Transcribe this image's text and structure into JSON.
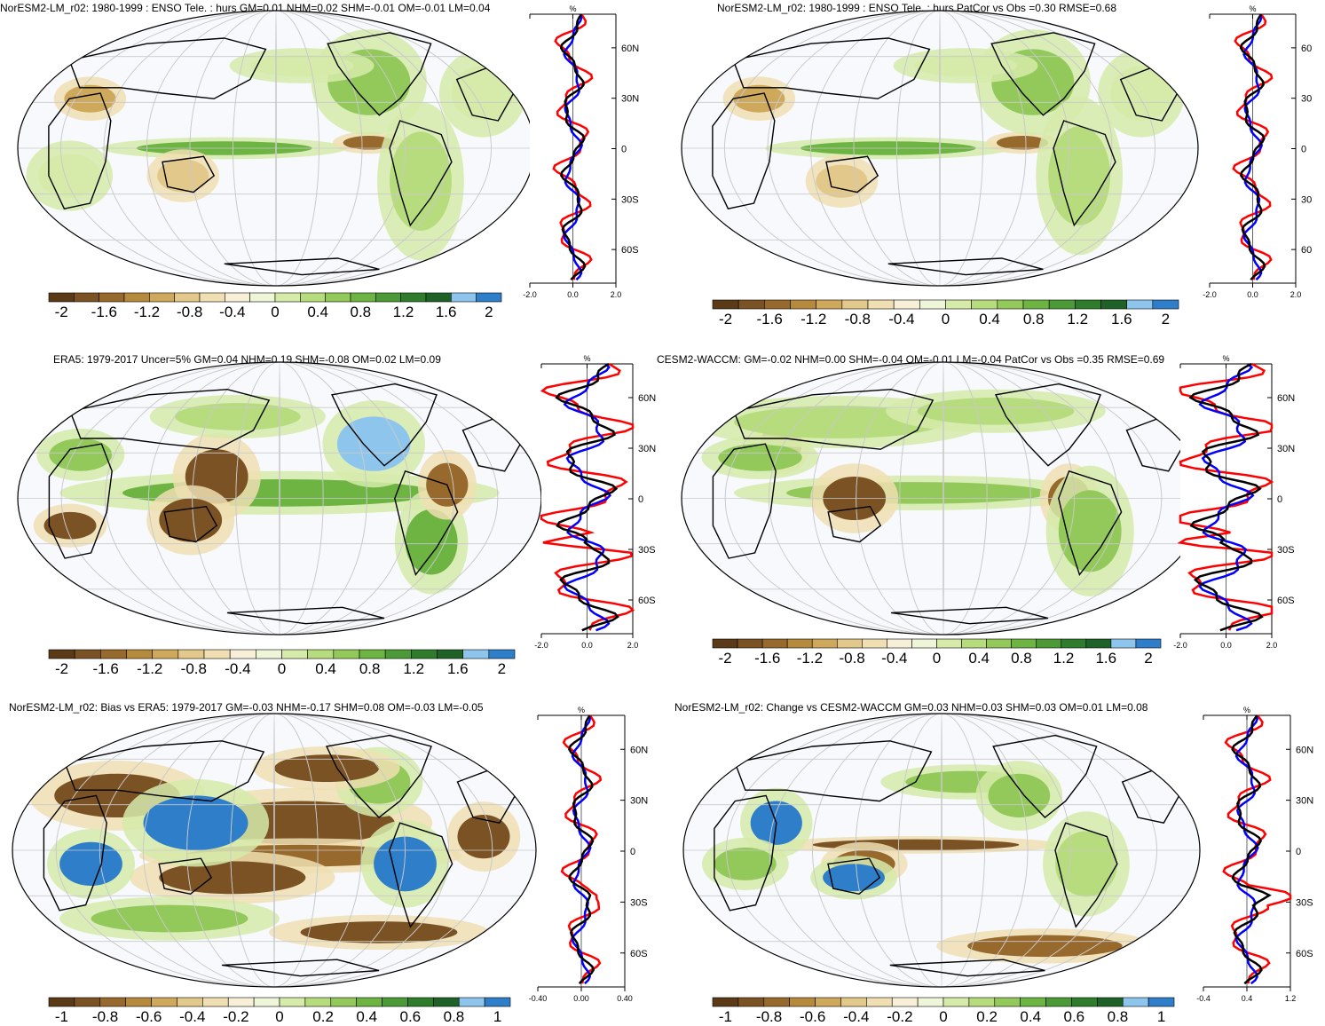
{
  "panels": [
    {
      "id": "p1",
      "title": "NorESM2-LM_r02: 1980-1999 : ENSO Tele. : hurs GM=0.01 NHM=0.02 SHM=-0.01 OM=-0.01 LM=0.04",
      "profile_unit": "%",
      "profile_xticks": [
        "-2.0",
        "0.0",
        "2.0"
      ],
      "lat_ticks": [
        "60N",
        "30N",
        "0",
        "30S",
        "60S"
      ],
      "colorbar_labels": [
        "-2",
        "-1.6",
        "-1.2",
        "-0.8",
        "-0.4",
        "0",
        "0.4",
        "0.8",
        "1.2",
        "1.6",
        "2"
      ]
    },
    {
      "id": "p2",
      "title": "NorESM2-LM_r02: 1980-1999 : ENSO Tele. : hurs PatCor vs Obs =0.30 RMSE=0.68",
      "profile_unit": "%",
      "profile_xticks": [
        "-2.0",
        "0.0",
        "2.0"
      ],
      "lat_ticks": [
        "60",
        "30",
        "0",
        "30",
        "60"
      ],
      "colorbar_labels": [
        "-2",
        "-1.6",
        "-1.2",
        "-0.8",
        "-0.4",
        "0",
        "0.4",
        "0.8",
        "1.2",
        "1.6",
        "2"
      ]
    },
    {
      "id": "p3",
      "title": "ERA5: 1979-2017 Uncer=5% GM=0.04 NHM=0.19 SHM=-0.08 OM=0.02 LM=0.09",
      "profile_unit": "%",
      "profile_xticks": [
        "-2.0",
        "0.0",
        "2.0"
      ],
      "lat_ticks": [
        "60N",
        "30N",
        "0",
        "30S",
        "60S"
      ],
      "colorbar_labels": [
        "-2",
        "-1.6",
        "-1.2",
        "-0.8",
        "-0.4",
        "0",
        "0.4",
        "0.8",
        "1.2",
        "1.6",
        "2"
      ]
    },
    {
      "id": "p4",
      "title": "CESM2-WACCM: GM=-0.02 NHM=0.00 SHM=-0.04 OM=-0.01 LM=-0.04 PatCor vs Obs =0.35 RMSE=0.69",
      "profile_unit": "%",
      "profile_xticks": [
        "-2.0",
        "0.0",
        "2.0"
      ],
      "lat_ticks": [
        "60N",
        "30N",
        "0",
        "30S",
        "60S"
      ],
      "colorbar_labels": [
        "-2",
        "-1.6",
        "-1.2",
        "-0.8",
        "-0.4",
        "0",
        "0.4",
        "0.8",
        "1.2",
        "1.6",
        "2"
      ]
    },
    {
      "id": "p5",
      "title": "NorESM2-LM_r02: Bias vs ERA5: 1979-2017 GM=-0.03 NHM=-0.17 SHM=0.08 OM=-0.03 LM=-0.05",
      "profile_unit": "%",
      "profile_xticks": [
        "-0.40",
        "0.00",
        "0.40"
      ],
      "lat_ticks": [
        "60N",
        "30N",
        "0",
        "30S",
        "60S"
      ],
      "colorbar_labels": [
        "-1",
        "-0.8",
        "-0.6",
        "-0.4",
        "-0.2",
        "0",
        "0.2",
        "0.4",
        "0.6",
        "0.8",
        "1"
      ]
    },
    {
      "id": "p6",
      "title": "NorESM2-LM_r02: Change vs CESM2-WACCM GM=0.03 NHM=0.03 SHM=0.03 OM=0.01 LM=0.08",
      "profile_unit": "%",
      "profile_xticks": [
        "-0.4",
        "0.4",
        "1.2"
      ],
      "lat_ticks": [
        "60N",
        "30N",
        "0",
        "30S",
        "60S"
      ],
      "colorbar_labels": [
        "-1",
        "-0.8",
        "-0.6",
        "-0.4",
        "-0.2",
        "0",
        "0.2",
        "0.4",
        "0.6",
        "0.8",
        "1"
      ]
    }
  ],
  "colors": {
    "palette": [
      "#5a3a17",
      "#7b5224",
      "#98692c",
      "#b58a3c",
      "#cfa95b",
      "#e2c88a",
      "#efdfb2",
      "#f7efd8",
      "#ffffff",
      "#eef5d8",
      "#d6ebaa",
      "#b7dc7d",
      "#93c95a",
      "#6db443",
      "#4c9a37",
      "#2f7d2c",
      "#1f6227",
      "#8ec5ec",
      "#2e7ec9"
    ],
    "ocean_bg": "#f7f9fd",
    "coast": "#000000",
    "grid": "#c9c9c9",
    "profile_model": "#ff0000",
    "profile_obs": "#0000ff",
    "profile_mean": "#000000"
  }
}
